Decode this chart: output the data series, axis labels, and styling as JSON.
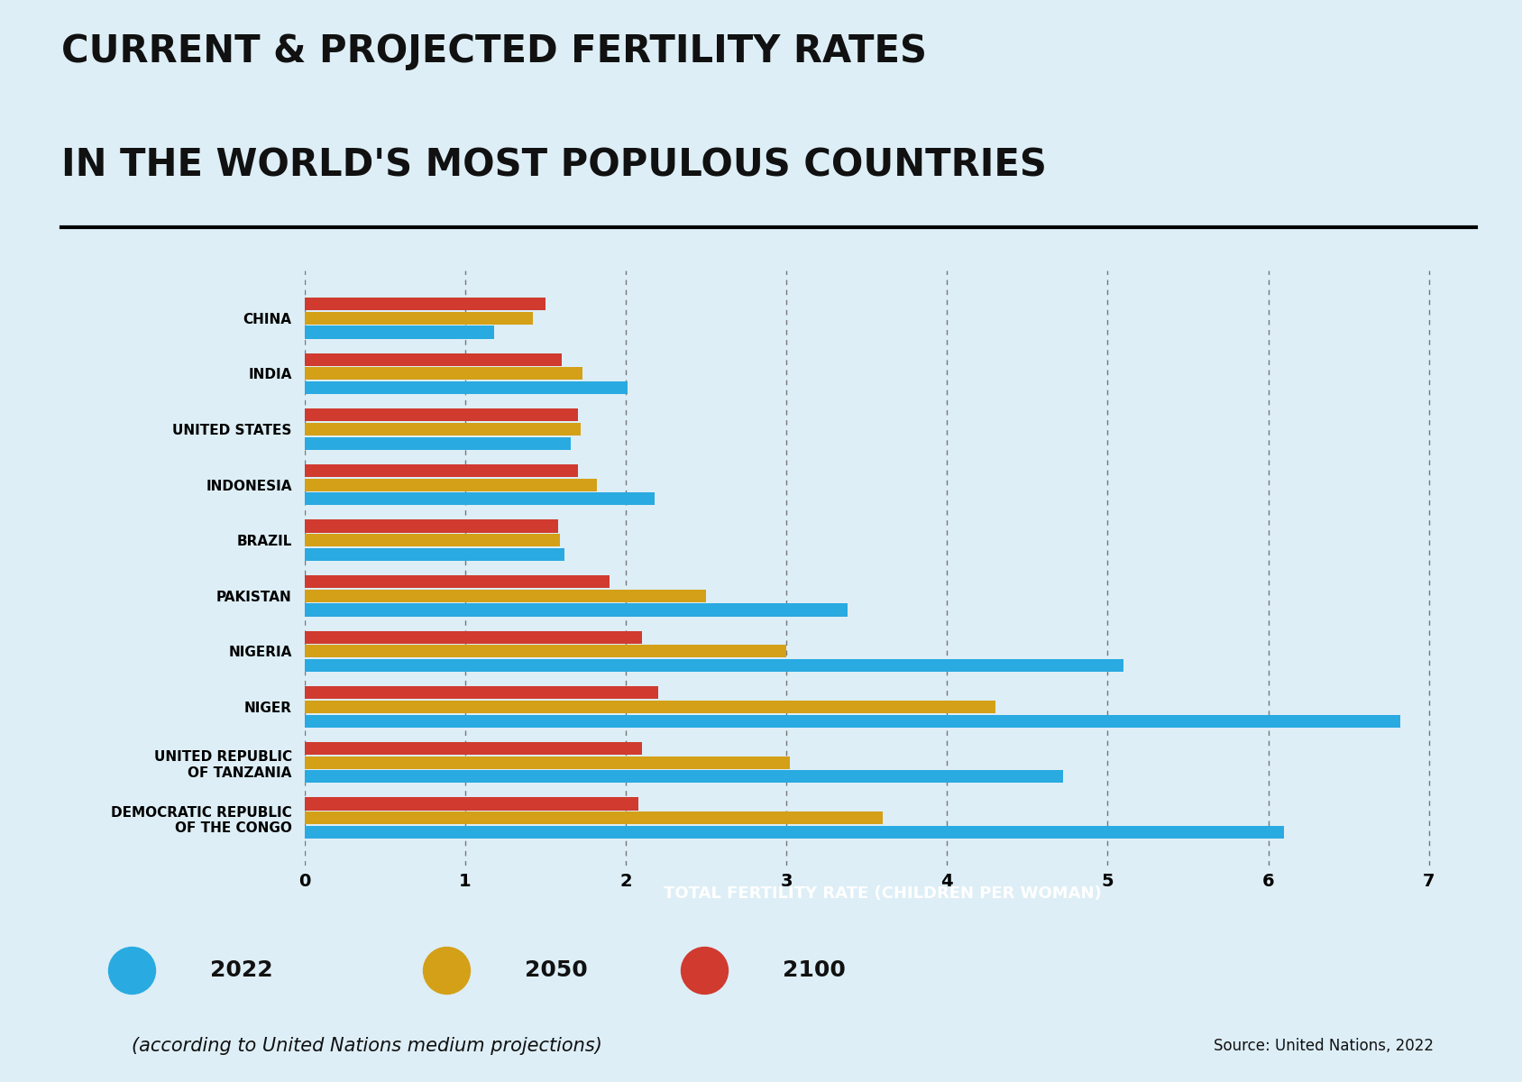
{
  "title_line1": "CURRENT & PROJECTED FERTILITY RATES",
  "title_line2": "IN THE WORLD'S MOST POPULOUS COUNTRIES",
  "xlabel": "TOTAL FERTILITY RATE (CHILDREN PER WOMAN)",
  "source": "Source: United Nations, 2022",
  "legend_note": "(according to United Nations medium projections)",
  "background_color": "#ddeef6",
  "countries": [
    "CHINA",
    "INDIA",
    "UNITED STATES",
    "INDONESIA",
    "BRAZIL",
    "PAKISTAN",
    "NIGERIA",
    "NIGER",
    "UNITED REPUBLIC\nOF TANZANIA",
    "DEMOCRATIC REPUBLIC\nOF THE CONGO"
  ],
  "values_2022": [
    1.18,
    2.01,
    1.66,
    2.18,
    1.62,
    3.38,
    5.1,
    6.82,
    4.72,
    6.1
  ],
  "values_2050": [
    1.42,
    1.73,
    1.72,
    1.82,
    1.59,
    2.5,
    3.0,
    4.3,
    3.02,
    3.6
  ],
  "values_2100": [
    1.5,
    1.6,
    1.7,
    1.7,
    1.58,
    1.9,
    2.1,
    2.2,
    2.1,
    2.08
  ],
  "color_2022": "#29aae1",
  "color_2050": "#d4a017",
  "color_2100": "#d03a2f",
  "xlim": [
    0,
    7.2
  ],
  "xticks": [
    0,
    1,
    2,
    3,
    4,
    5,
    6,
    7
  ]
}
